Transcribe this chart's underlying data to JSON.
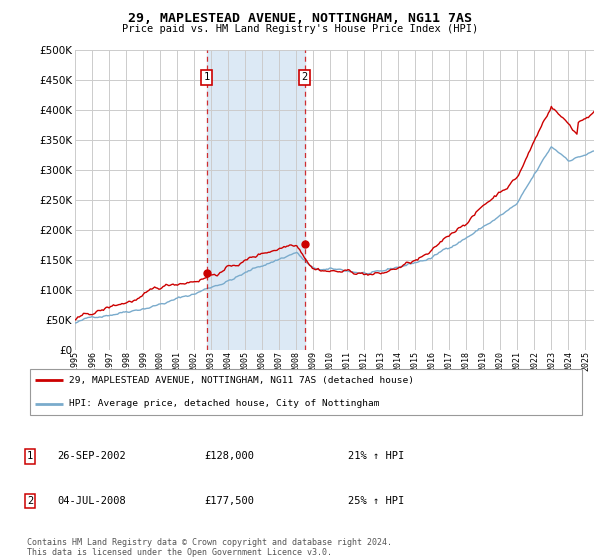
{
  "title": "29, MAPLESTEAD AVENUE, NOTTINGHAM, NG11 7AS",
  "subtitle": "Price paid vs. HM Land Registry's House Price Index (HPI)",
  "ylim": [
    0,
    500000
  ],
  "xlim_start": 1995.0,
  "xlim_end": 2025.5,
  "marker1_x": 2002.73,
  "marker1_y": 128000,
  "marker2_x": 2008.5,
  "marker2_y": 177500,
  "shade_color": "#dce9f5",
  "red_color": "#cc0000",
  "blue_color": "#7aabcc",
  "grid_color": "#cccccc",
  "background_color": "#ffffff",
  "legend_line1": "29, MAPLESTEAD AVENUE, NOTTINGHAM, NG11 7AS (detached house)",
  "legend_line2": "HPI: Average price, detached house, City of Nottingham",
  "marker1_date": "26-SEP-2002",
  "marker1_price": "£128,000",
  "marker1_hpi": "21% ↑ HPI",
  "marker2_date": "04-JUL-2008",
  "marker2_price": "£177,500",
  "marker2_hpi": "25% ↑ HPI",
  "footnote": "Contains HM Land Registry data © Crown copyright and database right 2024.\nThis data is licensed under the Open Government Licence v3.0."
}
